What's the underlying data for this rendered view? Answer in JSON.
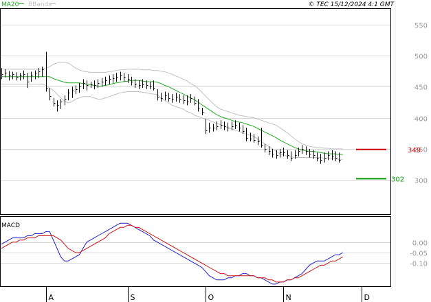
{
  "header": {
    "ma_label": "MA20",
    "bb_label": "BBands",
    "copyright": "© TEC 15/12/2024 4:1 GMT"
  },
  "colors": {
    "price": "#000000",
    "ma20": "#22aa22",
    "bbands": "#c0c0c0",
    "macd": "#1f1fcc",
    "signal": "#cc1111",
    "resistance": "#cc0000",
    "support": "#009900",
    "grid": "#d8d8d8",
    "axis_text": "#999999"
  },
  "chart_data": [
    {
      "type": "line",
      "name": "price",
      "ylim": [
        245,
        575
      ],
      "yticks": [
        "550",
        "500",
        "450",
        "400",
        "350",
        "300"
      ],
      "ytick_values": [
        550,
        500,
        450,
        400,
        350,
        300
      ],
      "grid": true,
      "xticks": [
        "A",
        "S",
        "O",
        "N",
        "D"
      ],
      "xtick_index": [
        12,
        34,
        55,
        76,
        97
      ],
      "bars": [
        {
          "h": 480,
          "l": 462,
          "c": 470
        },
        {
          "h": 478,
          "l": 465,
          "c": 472
        },
        {
          "h": 475,
          "l": 460,
          "c": 468
        },
        {
          "h": 474,
          "l": 462,
          "c": 470
        },
        {
          "h": 473,
          "l": 460,
          "c": 466
        },
        {
          "h": 472,
          "l": 460,
          "c": 468
        },
        {
          "h": 476,
          "l": 462,
          "c": 470
        },
        {
          "h": 472,
          "l": 448,
          "c": 458
        },
        {
          "h": 474,
          "l": 458,
          "c": 468
        },
        {
          "h": 476,
          "l": 462,
          "c": 472
        },
        {
          "h": 480,
          "l": 464,
          "c": 475
        },
        {
          "h": 482,
          "l": 466,
          "c": 478
        },
        {
          "h": 506,
          "l": 442,
          "c": 448
        },
        {
          "h": 448,
          "l": 428,
          "c": 435
        },
        {
          "h": 432,
          "l": 418,
          "c": 424
        },
        {
          "h": 428,
          "l": 410,
          "c": 420
        },
        {
          "h": 430,
          "l": 414,
          "c": 426
        },
        {
          "h": 436,
          "l": 420,
          "c": 430
        },
        {
          "h": 446,
          "l": 428,
          "c": 440
        },
        {
          "h": 450,
          "l": 432,
          "c": 444
        },
        {
          "h": 452,
          "l": 438,
          "c": 446
        },
        {
          "h": 456,
          "l": 440,
          "c": 450
        },
        {
          "h": 462,
          "l": 446,
          "c": 456
        },
        {
          "h": 460,
          "l": 444,
          "c": 452
        },
        {
          "h": 458,
          "l": 448,
          "c": 454
        },
        {
          "h": 460,
          "l": 446,
          "c": 452
        },
        {
          "h": 462,
          "l": 448,
          "c": 456
        },
        {
          "h": 464,
          "l": 450,
          "c": 458
        },
        {
          "h": 466,
          "l": 452,
          "c": 460
        },
        {
          "h": 468,
          "l": 454,
          "c": 462
        },
        {
          "h": 470,
          "l": 456,
          "c": 464
        },
        {
          "h": 472,
          "l": 458,
          "c": 466
        },
        {
          "h": 474,
          "l": 460,
          "c": 468
        },
        {
          "h": 472,
          "l": 458,
          "c": 466
        },
        {
          "h": 470,
          "l": 456,
          "c": 462
        },
        {
          "h": 466,
          "l": 452,
          "c": 458
        },
        {
          "h": 462,
          "l": 448,
          "c": 454
        },
        {
          "h": 460,
          "l": 446,
          "c": 452
        },
        {
          "h": 462,
          "l": 448,
          "c": 454
        },
        {
          "h": 460,
          "l": 446,
          "c": 452
        },
        {
          "h": 458,
          "l": 446,
          "c": 450
        },
        {
          "h": 460,
          "l": 444,
          "c": 448
        },
        {
          "h": 446,
          "l": 428,
          "c": 434
        },
        {
          "h": 440,
          "l": 426,
          "c": 432
        },
        {
          "h": 442,
          "l": 428,
          "c": 436
        },
        {
          "h": 440,
          "l": 426,
          "c": 432
        },
        {
          "h": 438,
          "l": 424,
          "c": 430
        },
        {
          "h": 440,
          "l": 426,
          "c": 434
        },
        {
          "h": 438,
          "l": 424,
          "c": 430
        },
        {
          "h": 436,
          "l": 422,
          "c": 428
        },
        {
          "h": 436,
          "l": 420,
          "c": 426
        },
        {
          "h": 438,
          "l": 424,
          "c": 432
        },
        {
          "h": 434,
          "l": 420,
          "c": 424
        },
        {
          "h": 430,
          "l": 410,
          "c": 416
        },
        {
          "h": 416,
          "l": 404,
          "c": 410
        },
        {
          "h": 398,
          "l": 374,
          "c": 380
        },
        {
          "h": 392,
          "l": 376,
          "c": 384
        },
        {
          "h": 390,
          "l": 378,
          "c": 384
        },
        {
          "h": 394,
          "l": 380,
          "c": 386
        },
        {
          "h": 396,
          "l": 382,
          "c": 388
        },
        {
          "h": 394,
          "l": 380,
          "c": 386
        },
        {
          "h": 392,
          "l": 378,
          "c": 384
        },
        {
          "h": 394,
          "l": 380,
          "c": 386
        },
        {
          "h": 396,
          "l": 382,
          "c": 388
        },
        {
          "h": 392,
          "l": 378,
          "c": 384
        },
        {
          "h": 388,
          "l": 374,
          "c": 378
        },
        {
          "h": 384,
          "l": 362,
          "c": 368
        },
        {
          "h": 376,
          "l": 362,
          "c": 366
        },
        {
          "h": 374,
          "l": 360,
          "c": 364
        },
        {
          "h": 370,
          "l": 356,
          "c": 362
        },
        {
          "h": 384,
          "l": 352,
          "c": 356
        },
        {
          "h": 358,
          "l": 344,
          "c": 350
        },
        {
          "h": 354,
          "l": 340,
          "c": 346
        },
        {
          "h": 350,
          "l": 336,
          "c": 342
        },
        {
          "h": 348,
          "l": 334,
          "c": 340
        },
        {
          "h": 350,
          "l": 336,
          "c": 344
        },
        {
          "h": 352,
          "l": 338,
          "c": 344
        },
        {
          "h": 348,
          "l": 334,
          "c": 340
        },
        {
          "h": 346,
          "l": 330,
          "c": 336
        },
        {
          "h": 348,
          "l": 334,
          "c": 340
        },
        {
          "h": 352,
          "l": 338,
          "c": 346
        },
        {
          "h": 356,
          "l": 342,
          "c": 350
        },
        {
          "h": 354,
          "l": 340,
          "c": 346
        },
        {
          "h": 350,
          "l": 336,
          "c": 342
        },
        {
          "h": 348,
          "l": 334,
          "c": 340
        },
        {
          "h": 344,
          "l": 330,
          "c": 336
        },
        {
          "h": 342,
          "l": 326,
          "c": 332
        },
        {
          "h": 344,
          "l": 328,
          "c": 336
        },
        {
          "h": 346,
          "l": 332,
          "c": 340
        },
        {
          "h": 348,
          "l": 332,
          "c": 338
        },
        {
          "h": 346,
          "l": 330,
          "c": 336
        },
        {
          "h": 344,
          "l": 328,
          "c": 332
        }
      ],
      "ma20": [
        466,
        466,
        466,
        466,
        466,
        466,
        466,
        466,
        466,
        466,
        466,
        466,
        466,
        466,
        463,
        461,
        459,
        457,
        456,
        456,
        456,
        456,
        455,
        454,
        453,
        452,
        451,
        451,
        452,
        453,
        455,
        456,
        457,
        458,
        459,
        460,
        460,
        460,
        459,
        458,
        458,
        458,
        457,
        455,
        452,
        450,
        447,
        444,
        441,
        438,
        435,
        432,
        429,
        425,
        421,
        417,
        413,
        409,
        405,
        402,
        400,
        398,
        396,
        394,
        393,
        392,
        390,
        388,
        386,
        383,
        380,
        377,
        374,
        371,
        368,
        364,
        361,
        358,
        355,
        352,
        350,
        348,
        347,
        346,
        346,
        345,
        344,
        343,
        342,
        342,
        342,
        341,
        341
      ],
      "bb_upper": [
        478,
        478,
        478,
        478,
        478,
        478,
        478,
        478,
        478,
        478,
        478,
        478,
        480,
        482,
        486,
        488,
        489,
        489,
        488,
        484,
        480,
        477,
        475,
        474,
        473,
        473,
        473,
        473,
        473,
        474,
        475,
        476,
        477,
        477,
        478,
        478,
        478,
        478,
        477,
        477,
        477,
        476,
        476,
        475,
        474,
        472,
        470,
        467,
        465,
        462,
        459,
        455,
        452,
        447,
        441,
        435,
        429,
        423,
        418,
        414,
        412,
        410,
        408,
        406,
        404,
        403,
        402,
        401,
        400,
        398,
        396,
        394,
        392,
        390,
        388,
        384,
        380,
        376,
        371,
        366,
        362,
        358,
        356,
        354,
        353,
        352,
        352,
        351,
        351,
        350,
        350,
        350,
        350
      ],
      "bb_lower": [
        454,
        454,
        454,
        454,
        454,
        454,
        454,
        454,
        454,
        454,
        454,
        454,
        452,
        448,
        444,
        438,
        432,
        427,
        424,
        426,
        430,
        432,
        434,
        434,
        434,
        432,
        430,
        430,
        432,
        434,
        436,
        438,
        440,
        441,
        442,
        442,
        442,
        442,
        441,
        440,
        439,
        438,
        437,
        432,
        428,
        424,
        420,
        418,
        416,
        414,
        410,
        408,
        404,
        402,
        400,
        398,
        396,
        393,
        391,
        389,
        387,
        384,
        382,
        380,
        378,
        376,
        374,
        372,
        370,
        366,
        362,
        358,
        354,
        350,
        346,
        342,
        340,
        338,
        337,
        336,
        336,
        336,
        336,
        336,
        336,
        336,
        336,
        335,
        335,
        334,
        334,
        333,
        333
      ],
      "resistance": {
        "value": 349,
        "label": "349"
      },
      "support": {
        "value": 302,
        "label": "302"
      }
    },
    {
      "type": "line",
      "name": "MACD",
      "title": "MACD",
      "ylim": [
        -21,
        12
      ],
      "yticks": [
        "0.00",
        "-0.05",
        "-0.10"
      ],
      "ytick_values": [
        0,
        -5,
        -10
      ],
      "grid": true,
      "series": [
        {
          "name": "macd",
          "values": [
            -1,
            0,
            1,
            2,
            2,
            2,
            2,
            3,
            3,
            4,
            4,
            4,
            5,
            5,
            1,
            -3,
            -7,
            -9,
            -9,
            -8,
            -7,
            -6,
            -3,
            0,
            1,
            2,
            3,
            4,
            5,
            6,
            7,
            8,
            9,
            9,
            9,
            8,
            7,
            6,
            5,
            4,
            3,
            1,
            0,
            -1,
            -2,
            -3,
            -4,
            -5,
            -6,
            -7,
            -8,
            -9,
            -10,
            -11,
            -12,
            -14,
            -16,
            -17,
            -18,
            -18,
            -18,
            -17,
            -17,
            -16,
            -16,
            -15,
            -15,
            -16,
            -16,
            -17,
            -17,
            -18,
            -19,
            -20,
            -20,
            -19,
            -19,
            -18,
            -18,
            -17,
            -16,
            -15,
            -13,
            -11,
            -10,
            -9,
            -9,
            -9,
            -8,
            -7,
            -6,
            -6,
            -5
          ]
        },
        {
          "name": "signal",
          "values": [
            -3,
            -2,
            -1,
            0,
            0,
            1,
            1,
            2,
            2,
            2,
            3,
            3,
            3,
            3,
            3,
            2,
            1,
            -1,
            -3,
            -4,
            -5,
            -5,
            -4,
            -3,
            -2,
            -1,
            0,
            1,
            2,
            4,
            5,
            6,
            7,
            7,
            8,
            8,
            7,
            7,
            6,
            5,
            4,
            3,
            2,
            1,
            0,
            -1,
            -2,
            -3,
            -4,
            -5,
            -6,
            -7,
            -8,
            -9,
            -10,
            -11,
            -12,
            -13,
            -14,
            -15,
            -15,
            -16,
            -16,
            -16,
            -16,
            -16,
            -16,
            -16,
            -16,
            -17,
            -17,
            -17,
            -18,
            -18,
            -19,
            -19,
            -19,
            -18,
            -18,
            -17,
            -17,
            -16,
            -15,
            -14,
            -13,
            -12,
            -11,
            -11,
            -10,
            -9,
            -9,
            -8,
            -7
          ]
        }
      ]
    }
  ]
}
